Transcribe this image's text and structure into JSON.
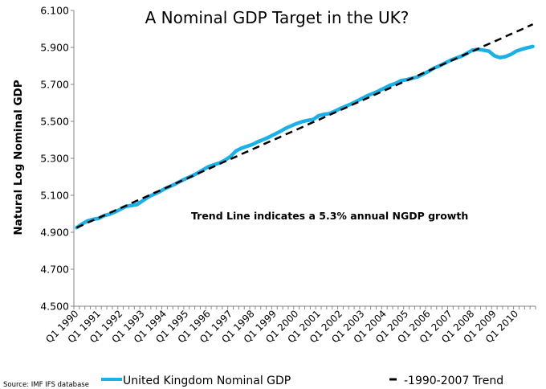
{
  "chart_data": {
    "type": "line",
    "title": "A Nominal GDP Target in the UK?",
    "ylabel": "Natural Log Nominal GDP",
    "xlabel": "",
    "ylim": [
      4.5,
      6.1
    ],
    "yticks": [
      "4.500",
      "4.700",
      "4.900",
      "5.100",
      "5.300",
      "5.500",
      "5.700",
      "5.900",
      "6.100"
    ],
    "xtick_labels": [
      "Q1 1990",
      "Q1 1991",
      "Q1 1992",
      "Q1 1993",
      "Q1 1994",
      "Q1 1995",
      "Q1 1996",
      "Q1 1997",
      "Q1 1998",
      "Q1 1999",
      "Q1 2000",
      "Q1 2001",
      "Q1 2002",
      "Q1 2003",
      "Q1 2004",
      "Q1 2005",
      "Q1 2006",
      "Q1 2007",
      "Q1 2008",
      "Q1 2009",
      "Q1 2010"
    ],
    "categories": [
      "Q1 1990",
      "Q2 1990",
      "Q3 1990",
      "Q4 1990",
      "Q1 1991",
      "Q2 1991",
      "Q3 1991",
      "Q4 1991",
      "Q1 1992",
      "Q2 1992",
      "Q3 1992",
      "Q4 1992",
      "Q1 1993",
      "Q2 1993",
      "Q3 1993",
      "Q4 1993",
      "Q1 1994",
      "Q2 1994",
      "Q3 1994",
      "Q4 1994",
      "Q1 1995",
      "Q2 1995",
      "Q3 1995",
      "Q4 1995",
      "Q1 1996",
      "Q2 1996",
      "Q3 1996",
      "Q4 1996",
      "Q1 1997",
      "Q2 1997",
      "Q3 1997",
      "Q4 1997",
      "Q1 1998",
      "Q2 1998",
      "Q3 1998",
      "Q4 1998",
      "Q1 1999",
      "Q2 1999",
      "Q3 1999",
      "Q4 1999",
      "Q1 2000",
      "Q2 2000",
      "Q3 2000",
      "Q4 2000",
      "Q1 2001",
      "Q2 2001",
      "Q3 2001",
      "Q4 2001",
      "Q1 2002",
      "Q2 2002",
      "Q3 2002",
      "Q4 2002",
      "Q1 2003",
      "Q2 2003",
      "Q3 2003",
      "Q4 2003",
      "Q1 2004",
      "Q2 2004",
      "Q3 2004",
      "Q4 2004",
      "Q1 2005",
      "Q2 2005",
      "Q3 2005",
      "Q4 2005",
      "Q1 2006",
      "Q2 2006",
      "Q3 2006",
      "Q4 2006",
      "Q1 2007",
      "Q2 2007",
      "Q3 2007",
      "Q4 2007",
      "Q1 2008",
      "Q2 2008",
      "Q3 2008",
      "Q4 2008",
      "Q1 2009",
      "Q2 2009",
      "Q3 2009",
      "Q4 2009",
      "Q1 2010",
      "Q2 2010",
      "Q3 2010",
      "Q4 2010"
    ],
    "series": [
      {
        "name": "United Kingdom Nominal GDP",
        "color": "#1AB0E8",
        "style": "solid",
        "values": [
          4.925,
          4.945,
          4.962,
          4.97,
          4.975,
          4.99,
          4.998,
          5.01,
          5.025,
          5.04,
          5.045,
          5.05,
          5.07,
          5.09,
          5.105,
          5.118,
          5.135,
          5.148,
          5.162,
          5.178,
          5.192,
          5.205,
          5.22,
          5.238,
          5.255,
          5.265,
          5.275,
          5.29,
          5.31,
          5.34,
          5.355,
          5.365,
          5.375,
          5.39,
          5.402,
          5.415,
          5.43,
          5.445,
          5.462,
          5.475,
          5.488,
          5.498,
          5.505,
          5.51,
          5.53,
          5.538,
          5.542,
          5.555,
          5.57,
          5.582,
          5.595,
          5.61,
          5.625,
          5.64,
          5.652,
          5.665,
          5.68,
          5.695,
          5.705,
          5.72,
          5.725,
          5.733,
          5.74,
          5.755,
          5.77,
          5.788,
          5.8,
          5.815,
          5.83,
          5.842,
          5.852,
          5.868,
          5.885,
          5.89,
          5.885,
          5.88,
          5.855,
          5.845,
          5.85,
          5.862,
          5.88,
          5.89,
          5.898,
          5.905
        ]
      },
      {
        "name": "-1990-2007 Trend",
        "color": "#000000",
        "style": "dashed",
        "values": [
          4.925,
          4.938,
          4.952,
          4.965,
          4.978,
          4.991,
          5.005,
          5.018,
          5.031,
          5.044,
          5.058,
          5.071,
          5.084,
          5.097,
          5.111,
          5.124,
          5.137,
          5.15,
          5.164,
          5.177,
          5.19,
          5.203,
          5.217,
          5.23,
          5.243,
          5.256,
          5.27,
          5.283,
          5.296,
          5.309,
          5.323,
          5.336,
          5.349,
          5.362,
          5.376,
          5.389,
          5.402,
          5.415,
          5.429,
          5.442,
          5.455,
          5.468,
          5.482,
          5.495,
          5.508,
          5.521,
          5.535,
          5.548,
          5.561,
          5.574,
          5.588,
          5.601,
          5.614,
          5.627,
          5.641,
          5.654,
          5.667,
          5.68,
          5.694,
          5.707,
          5.72,
          5.733,
          5.747,
          5.76,
          5.773,
          5.786,
          5.8,
          5.813,
          5.826,
          5.839,
          5.853,
          5.866,
          5.879,
          5.892,
          5.906,
          5.919,
          5.932,
          5.945,
          5.959,
          5.972,
          5.985,
          5.998,
          6.012,
          6.025
        ]
      }
    ],
    "annotation": "Trend Line indicates a 5.3% annual NGDP growth",
    "legend_position": "bottom",
    "grid": false,
    "source": "Source: IMF IFS database"
  }
}
